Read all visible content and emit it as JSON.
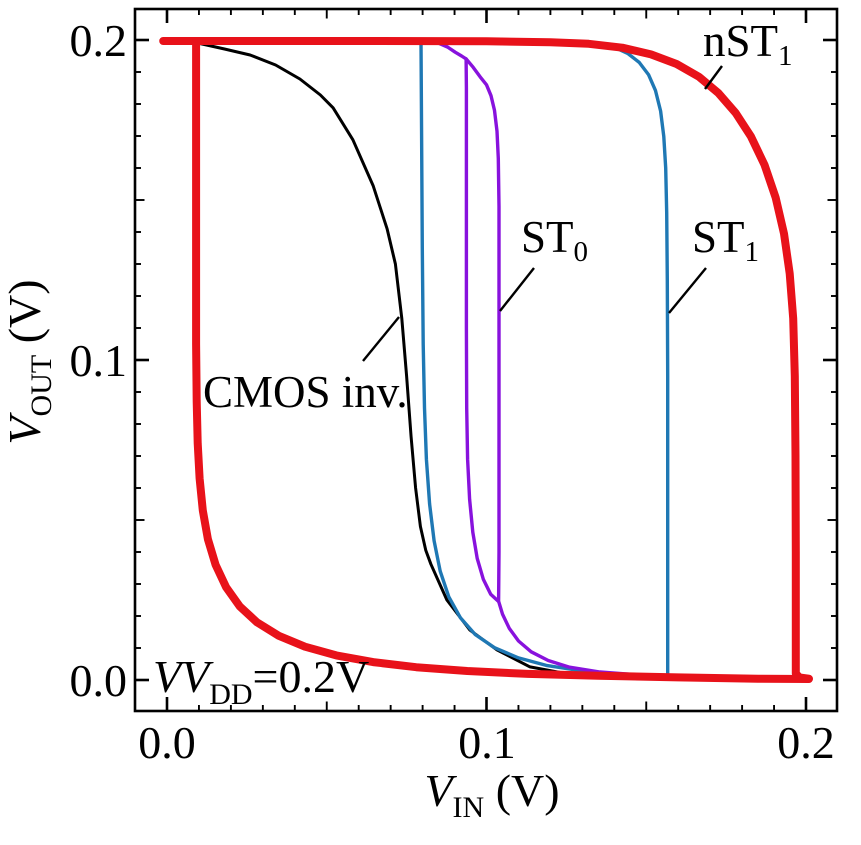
{
  "figure": {
    "background": "#ffffff",
    "frame_color": "#000000"
  },
  "chart_data": {
    "type": "line",
    "title": "",
    "xlabel": {
      "main": "V",
      "sub": "IN",
      "rest": " (V)"
    },
    "ylabel": {
      "main": "V",
      "sub": "OUT",
      "rest": " (V)"
    },
    "annotation": {
      "main": "VV",
      "sub": "DD",
      "rest": "=0.2V"
    },
    "xlim": [
      0,
      0.2
    ],
    "ylim": [
      0,
      0.2
    ],
    "xticks": [
      {
        "v": 0.0,
        "label": "0.0"
      },
      {
        "v": 0.1,
        "label": "0.1"
      },
      {
        "v": 0.2,
        "label": "0.2"
      }
    ],
    "yticks": [
      {
        "v": 0.0,
        "label": "0.0"
      },
      {
        "v": 0.1,
        "label": "0.1"
      },
      {
        "v": 0.2,
        "label": "0.2"
      }
    ],
    "minor_tick_step": 0.01,
    "medium_tick_step": 0.05,
    "major_tick_step": 0.1,
    "grid": false,
    "legend_position": "inline-curve-labels",
    "curve_labels": [
      {
        "text": "CMOS inv.",
        "sub": "",
        "color": "#000000"
      },
      {
        "text": "ST",
        "sub": "0",
        "color": "#8812dd"
      },
      {
        "text": "ST",
        "sub": "1",
        "color": "#1f78b4"
      },
      {
        "text": "nST",
        "sub": "1",
        "color": "#e8121a"
      }
    ],
    "series": [
      {
        "name": "CMOS inv.",
        "color": "#000000",
        "width": 3,
        "segments": [
          [
            [
              0.0094,
              0.1991
            ],
            [
              0.018,
              0.1972
            ],
            [
              0.026,
              0.1953
            ],
            [
              0.034,
              0.1922
            ],
            [
              0.0416,
              0.1878
            ],
            [
              0.048,
              0.1828
            ],
            [
              0.052,
              0.1788
            ],
            [
              0.0582,
              0.1688
            ],
            [
              0.0645,
              0.1545
            ],
            [
              0.0689,
              0.141
            ],
            [
              0.0715,
              0.13
            ],
            [
              0.0735,
              0.113
            ],
            [
              0.075,
              0.095
            ],
            [
              0.0764,
              0.076
            ],
            [
              0.0778,
              0.06
            ],
            [
              0.0793,
              0.048
            ],
            [
              0.081,
              0.0405
            ],
            [
              0.0826,
              0.0362
            ],
            [
              0.0876,
              0.025
            ],
            [
              0.0948,
              0.0156
            ],
            [
              0.1033,
              0.0094
            ],
            [
              0.1136,
              0.0041
            ],
            [
              0.1239,
              0.0022
            ],
            [
              0.14,
              0.0012
            ],
            [
              0.16,
              0.0007
            ]
          ]
        ]
      },
      {
        "name": "ST1",
        "color": "#1f78b4",
        "width": 3.4,
        "segments": [
          [
            [
              0.0795,
              0.1996
            ],
            [
              0.0797,
              0.17
            ],
            [
              0.0799,
              0.135
            ],
            [
              0.0802,
              0.105
            ],
            [
              0.0806,
              0.085
            ],
            [
              0.0812,
              0.069
            ],
            [
              0.0822,
              0.055
            ],
            [
              0.0836,
              0.0435
            ],
            [
              0.0855,
              0.034
            ],
            [
              0.0882,
              0.026
            ],
            [
              0.0918,
              0.0195
            ],
            [
              0.0965,
              0.0142
            ],
            [
              0.1025,
              0.0101
            ],
            [
              0.11,
              0.0069
            ],
            [
              0.119,
              0.0045
            ],
            [
              0.13,
              0.0028
            ],
            [
              0.144,
              0.0016
            ],
            [
              0.16,
              0.0009
            ],
            [
              0.175,
              0.0006
            ]
          ],
          [
            [
              0.128,
              0.1996
            ],
            [
              0.1345,
              0.199
            ],
            [
              0.1398,
              0.1978
            ],
            [
              0.1442,
              0.1958
            ],
            [
              0.1478,
              0.193
            ],
            [
              0.1507,
              0.1892
            ],
            [
              0.1529,
              0.1842
            ],
            [
              0.1545,
              0.1778
            ],
            [
              0.1555,
              0.1698
            ],
            [
              0.1561,
              0.16
            ],
            [
              0.1564,
              0.146
            ],
            [
              0.1566,
              0.125
            ],
            [
              0.1567,
              0.095
            ],
            [
              0.1567,
              0.06
            ],
            [
              0.1567,
              0.025
            ],
            [
              0.1567,
              0.001
            ]
          ]
        ]
      },
      {
        "name": "ST0",
        "color": "#8812dd",
        "width": 3.4,
        "segments": [
          [
            [
              0.082,
              0.1996
            ],
            [
              0.085,
              0.199
            ],
            [
              0.0878,
              0.1978
            ],
            [
              0.0902,
              0.1962
            ],
            [
              0.0922,
              0.195
            ],
            [
              0.0936,
              0.1941
            ],
            [
              0.0937,
              0.185
            ],
            [
              0.0937,
              0.15
            ],
            [
              0.0937,
              0.11
            ],
            [
              0.0938,
              0.085
            ],
            [
              0.0941,
              0.069
            ],
            [
              0.0947,
              0.0565
            ],
            [
              0.0957,
              0.0462
            ],
            [
              0.0971,
              0.038
            ],
            [
              0.099,
              0.0315
            ],
            [
              0.1013,
              0.0268
            ],
            [
              0.1037,
              0.0246
            ]
          ],
          [
            [
              0.0936,
              0.1941
            ],
            [
              0.0958,
              0.1915
            ],
            [
              0.098,
              0.1885
            ],
            [
              0.1,
              0.186
            ],
            [
              0.1014,
              0.1826
            ],
            [
              0.1025,
              0.178
            ],
            [
              0.1033,
              0.1715
            ],
            [
              0.1037,
              0.163
            ],
            [
              0.1039,
              0.148
            ],
            [
              0.1039,
              0.115
            ],
            [
              0.1039,
              0.075
            ],
            [
              0.1039,
              0.04
            ],
            [
              0.1038,
              0.0246
            ],
            [
              0.105,
              0.0206
            ],
            [
              0.1071,
              0.0162
            ],
            [
              0.11,
              0.0122
            ],
            [
              0.114,
              0.0088
            ],
            [
              0.1193,
              0.0061
            ],
            [
              0.126,
              0.004
            ],
            [
              0.1355,
              0.0025
            ],
            [
              0.149,
              0.0015
            ],
            [
              0.164,
              0.0008
            ]
          ]
        ]
      },
      {
        "name": "nST1",
        "color": "#e8121a",
        "width": 8,
        "segments": [
          [
            [
              -0.0012,
              0.1997
            ],
            [
              0.06,
              0.1997
            ],
            [
              0.1,
              0.1996
            ],
            [
              0.12,
              0.1993
            ],
            [
              0.132,
              0.1988
            ],
            [
              0.1425,
              0.1976
            ],
            [
              0.1515,
              0.1955
            ],
            [
              0.1595,
              0.1925
            ],
            [
              0.1665,
              0.1885
            ],
            [
              0.1725,
              0.1835
            ],
            [
              0.178,
              0.1772
            ],
            [
              0.1828,
              0.1698
            ],
            [
              0.187,
              0.161
            ],
            [
              0.1905,
              0.1508
            ],
            [
              0.1931,
              0.1395
            ],
            [
              0.1949,
              0.127
            ],
            [
              0.196,
              0.113
            ],
            [
              0.1965,
              0.095
            ],
            [
              0.1967,
              0.07
            ],
            [
              0.1968,
              0.04
            ],
            [
              0.1968,
              0.01
            ],
            [
              0.1968,
              0.002
            ],
            [
              0.198,
              0.0008
            ],
            [
              0.2009,
              0.0004
            ]
          ],
          [
            [
              0.0091,
              0.1997
            ],
            [
              0.0091,
              0.14
            ],
            [
              0.0091,
              0.105
            ],
            [
              0.0093,
              0.087
            ],
            [
              0.0096,
              0.074
            ],
            [
              0.0102,
              0.063
            ],
            [
              0.0112,
              0.053
            ],
            [
              0.0128,
              0.044
            ],
            [
              0.0152,
              0.036
            ],
            [
              0.0185,
              0.029
            ],
            [
              0.0228,
              0.023
            ],
            [
              0.0282,
              0.018
            ],
            [
              0.035,
              0.0138
            ],
            [
              0.0432,
              0.0104
            ],
            [
              0.053,
              0.0077
            ],
            [
              0.0645,
              0.0056
            ],
            [
              0.078,
              0.004
            ],
            [
              0.094,
              0.0028
            ],
            [
              0.113,
              0.0019
            ],
            [
              0.135,
              0.0013
            ],
            [
              0.16,
              0.0008
            ],
            [
              0.185,
              0.0004
            ],
            [
              0.2009,
              0.0003
            ]
          ]
        ]
      }
    ]
  }
}
